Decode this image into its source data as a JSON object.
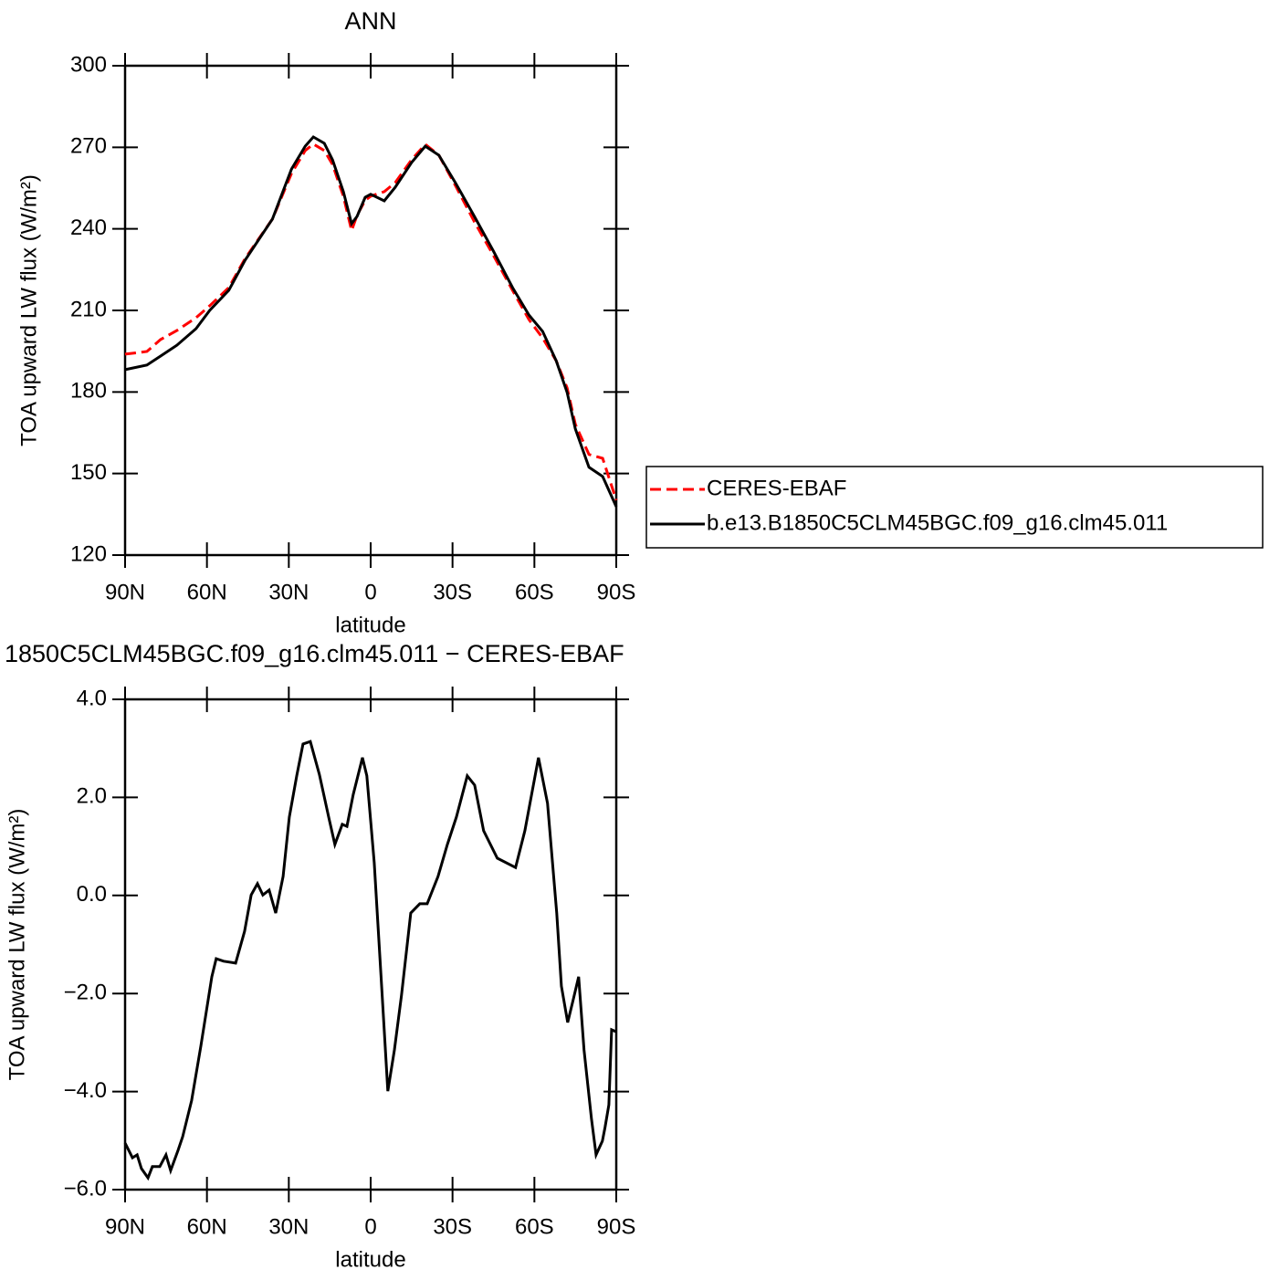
{
  "chart_data": [
    {
      "type": "line",
      "title": "ANN",
      "xlabel": "latitude",
      "ylabel": "TOA upward LW flux (W/m²)",
      "x": [
        90,
        82,
        77,
        71,
        64,
        59,
        52,
        46,
        36,
        29,
        24,
        21,
        17,
        14,
        10,
        7,
        5,
        2,
        0,
        -5,
        -9,
        -15,
        -20,
        -25,
        -31,
        -38,
        -45,
        -52,
        -58,
        -63,
        -68,
        -72,
        -75,
        -80,
        -85,
        -90
      ],
      "series": [
        {
          "name": "CERES-EBAF",
          "color": "#ff0000",
          "linestyle": "dashed",
          "values": [
            193.9,
            194.9,
            199.3,
            202.6,
            207.3,
            211.7,
            218.4,
            229.1,
            243.6,
            260.4,
            268.8,
            271.2,
            268.8,
            263.7,
            252,
            239.4,
            245,
            250.5,
            252,
            253.7,
            257,
            265.4,
            271.1,
            267.1,
            256,
            242.6,
            230.2,
            217.4,
            206.6,
            199.9,
            191.5,
            181.5,
            168.1,
            157,
            155.6,
            140.2
          ]
        },
        {
          "name": "b.e13.B1850C5CLM45BGC.f09_g16.clm45.011",
          "color": "#000000",
          "linestyle": "solid",
          "values": [
            188.2,
            189.9,
            193.2,
            197.2,
            203.3,
            210,
            217.4,
            228.5,
            243.6,
            262,
            270.4,
            273.8,
            271.5,
            265.4,
            253.7,
            241.9,
            244.6,
            251.6,
            252.7,
            250.3,
            255.3,
            264.4,
            270.4,
            267.1,
            257,
            244.6,
            231.8,
            218.4,
            208.3,
            202.3,
            191.5,
            179.8,
            166.4,
            152.3,
            148.9,
            137.8
          ]
        }
      ],
      "xlim": [
        90,
        -90
      ],
      "xticks": [
        {
          "value": 90,
          "label": "90N"
        },
        {
          "value": 60,
          "label": "60N"
        },
        {
          "value": 30,
          "label": "30N"
        },
        0,
        {
          "value": -30,
          "label": "30S"
        },
        {
          "value": -60,
          "label": "60S"
        },
        {
          "value": -90,
          "label": "90S"
        }
      ],
      "ylim": [
        120,
        300
      ],
      "yticks": [
        120,
        150,
        180,
        210,
        240,
        270,
        300
      ],
      "legend": "right"
    },
    {
      "type": "line",
      "title": "1850C5CLM45BGC.f09_g16.clm45.011 − CERES-EBAF",
      "xlabel": "latitude",
      "ylabel": "TOA upward LW flux (W/m²)",
      "x": [
        90,
        87.3,
        85.6,
        84,
        81.6,
        80,
        77.3,
        75,
        73.3,
        70.6,
        68.9,
        65.6,
        62.2,
        58.2,
        56.6,
        53.9,
        49.5,
        46.2,
        43.8,
        41.5,
        39.5,
        37.2,
        34.8,
        32.1,
        29.8,
        27.1,
        24.8,
        22.1,
        18.8,
        15.4,
        13.1,
        10.4,
        8.7,
        6.4,
        3,
        1.4,
        -1.3,
        -4,
        -6.3,
        -8.7,
        -11.3,
        -14.7,
        -18,
        -20.7,
        -24.7,
        -28.1,
        -31.4,
        -35.4,
        -38.1,
        -41.4,
        -46.4,
        -53.1,
        -56.5,
        -61.5,
        -64.8,
        -68.2,
        -69.9,
        -72.2,
        -74.2,
        -76.2,
        -78.2,
        -80.9,
        -82.6,
        -84.9,
        -85.9,
        -87.3,
        -88.3,
        -90
      ],
      "series": [
        {
          "name": "difference",
          "color": "#000000",
          "linestyle": "solid",
          "values": [
            -5.05,
            -5.35,
            -5.29,
            -5.57,
            -5.76,
            -5.53,
            -5.53,
            -5.29,
            -5.61,
            -5.2,
            -4.92,
            -4.18,
            -3.06,
            -1.66,
            -1.29,
            -1.34,
            -1.38,
            -0.73,
            0.01,
            0.24,
            0.01,
            0.11,
            -0.36,
            0.39,
            1.6,
            2.44,
            3.09,
            3.14,
            2.47,
            1.6,
            1.04,
            1.45,
            1.41,
            2.06,
            2.81,
            2.44,
            0.67,
            -1.85,
            -3.99,
            -3.15,
            -2.03,
            -0.36,
            -0.17,
            -0.17,
            0.39,
            1.04,
            1.6,
            2.44,
            2.25,
            1.32,
            0.76,
            0.57,
            1.32,
            2.81,
            1.88,
            -0.36,
            -1.85,
            -2.59,
            -2.13,
            -1.66,
            -3.15,
            -4.55,
            -5.29,
            -5.01,
            -4.73,
            -4.27,
            -2.74,
            -2.78
          ]
        }
      ],
      "xlim": [
        90,
        -90
      ],
      "xticks": [
        {
          "value": 90,
          "label": "90N"
        },
        {
          "value": 60,
          "label": "60N"
        },
        {
          "value": 30,
          "label": "30N"
        },
        0,
        {
          "value": -30,
          "label": "30S"
        },
        {
          "value": -60,
          "label": "60S"
        },
        {
          "value": -90,
          "label": "90S"
        }
      ],
      "ylim": [
        -6,
        4
      ],
      "yticks": [
        {
          "value": -6,
          "label": "−6.0"
        },
        {
          "value": -4,
          "label": "−4.0"
        },
        {
          "value": -2,
          "label": "−2.0"
        },
        {
          "value": 0,
          "label": "0.0"
        },
        {
          "value": 2,
          "label": "2.0"
        },
        {
          "value": 4,
          "label": "4.0"
        }
      ]
    }
  ]
}
